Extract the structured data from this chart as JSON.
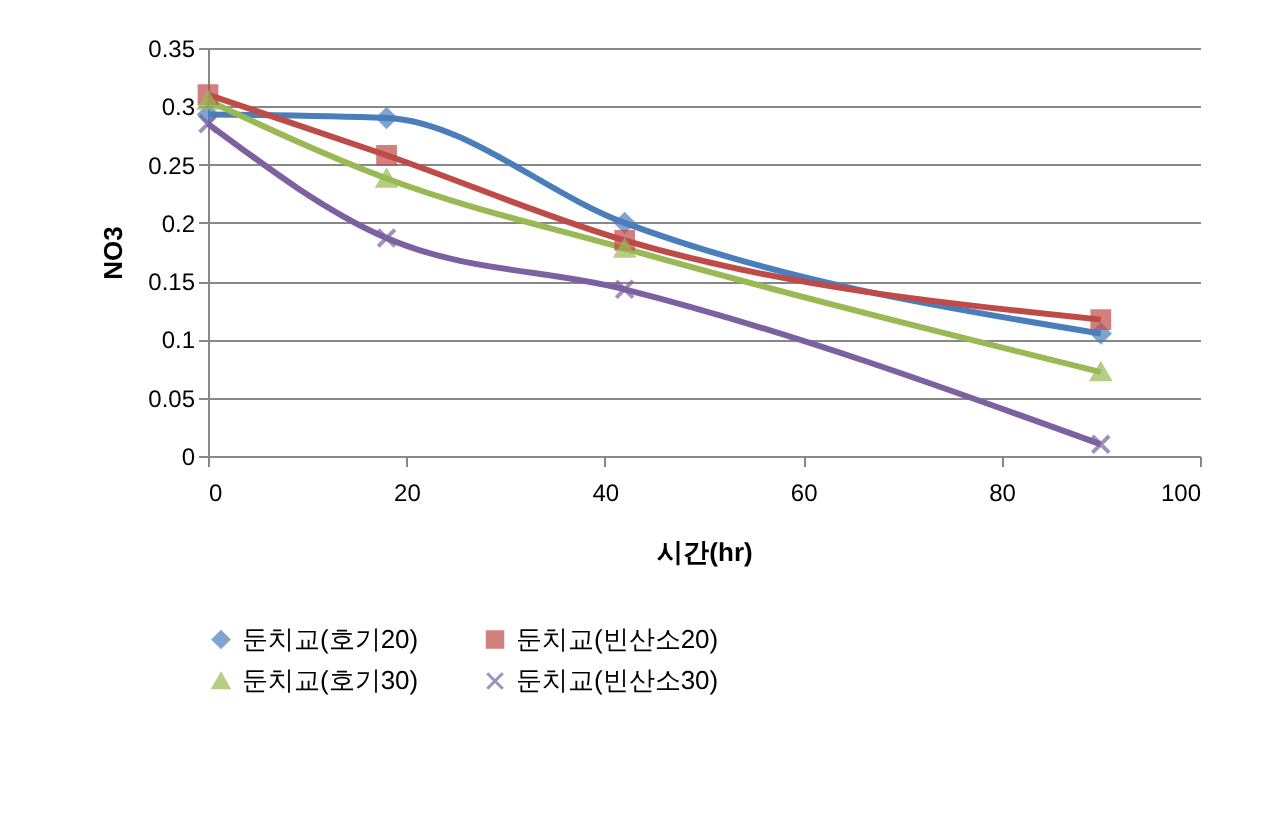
{
  "chart_data": {
    "type": "line",
    "xlabel": "시간(hr)",
    "ylabel": "NO3",
    "x": [
      0,
      18,
      42,
      90
    ],
    "series": [
      {
        "name": "둔치교(호기20)",
        "color": "#4a7ebb",
        "marker": "diamond",
        "values": [
          0.293,
          0.29,
          0.2,
          0.105
        ]
      },
      {
        "name": "둔치교(빈산소20)",
        "color": "#be4b48",
        "marker": "square",
        "values": [
          0.31,
          0.258,
          0.185,
          0.117
        ]
      },
      {
        "name": "둔치교(호기30)",
        "color": "#98b954",
        "marker": "triangle",
        "values": [
          0.305,
          0.238,
          0.178,
          0.072
        ]
      },
      {
        "name": "둔치교(빈산소30)",
        "color": "#7d60a0",
        "marker": "cross",
        "values": [
          0.285,
          0.187,
          0.143,
          0.01
        ]
      }
    ],
    "xlim": [
      0,
      100
    ],
    "xticks": [
      0,
      20,
      40,
      60,
      80,
      100
    ],
    "ylim": [
      0,
      0.35
    ],
    "yticks": [
      0,
      0.05,
      0.1,
      0.15,
      0.2,
      0.25,
      0.3,
      0.35
    ],
    "grid": "y",
    "legend": "bottom",
    "line_style": "solid"
  }
}
